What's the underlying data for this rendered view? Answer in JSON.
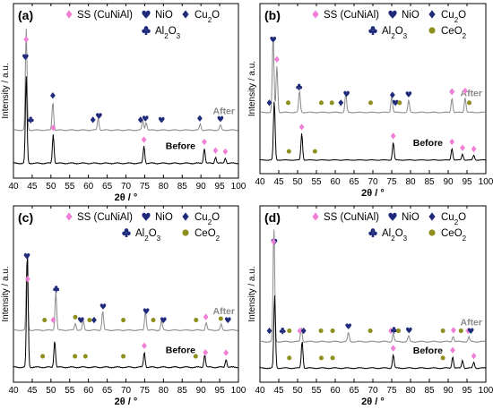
{
  "colors": {
    "ss": "#f27fd6",
    "nio": "#1f2a7a",
    "cu2o": "#1f2a7a",
    "al2o3": "#1f2a7a",
    "ceo2": "#8f8f1e",
    "after": "#8a8a8a",
    "before": "#000000"
  },
  "legend_text": {
    "ss": "SS (CuNiAl)",
    "nio": "NiO",
    "cu2o_main": "Cu",
    "cu2o_sub": "2",
    "cu2o_end": "O",
    "al2o3_a": "Al",
    "al2o3_sub1": "2",
    "al2o3_b": "O",
    "al2o3_sub2": "3",
    "ceo2_main": "CeO",
    "ceo2_sub": "2"
  },
  "chart_data": [
    {
      "type": "line",
      "panel": "(a)",
      "xlabel": "2θ / °",
      "ylabel": "Intensity / a.u.",
      "xlim": [
        40,
        100
      ],
      "xticks": [
        40,
        45,
        50,
        55,
        60,
        65,
        70,
        75,
        80,
        85,
        90,
        95,
        100
      ],
      "legend": [
        "SS (CuNiAl)",
        "NiO",
        "Cu2O",
        "Al2O3"
      ],
      "series": [
        {
          "name": "After",
          "peaks": [
            [
              43.4,
              1.0
            ],
            [
              50.5,
              0.28
            ],
            [
              62.6,
              0.12
            ],
            [
              74.5,
              0.1
            ],
            [
              75.4,
              0.08
            ],
            [
              89.8,
              0.06
            ],
            [
              95.2,
              0.05
            ]
          ]
        },
        {
          "name": "Before",
          "peaks": [
            [
              43.4,
              0.8
            ],
            [
              50.6,
              0.27
            ],
            [
              74.8,
              0.16
            ],
            [
              90.9,
              0.14
            ],
            [
              93.9,
              0.06
            ],
            [
              96.5,
              0.05
            ]
          ]
        }
      ],
      "markers": [
        {
          "phase": "ss",
          "x": 43.4,
          "curve": "After"
        },
        {
          "phase": "nio",
          "x": 43.2,
          "curve": "After"
        },
        {
          "phase": "al2o3",
          "x": 44.6,
          "curve": "After"
        },
        {
          "phase": "cu2o",
          "x": 50.5,
          "curve": "After"
        },
        {
          "phase": "cu2o",
          "x": 61.2,
          "curve": "After"
        },
        {
          "phase": "nio",
          "x": 62.8,
          "curve": "After"
        },
        {
          "phase": "cu2o",
          "x": 73.9,
          "curve": "After"
        },
        {
          "phase": "nio",
          "x": 75.2,
          "curve": "After"
        },
        {
          "phase": "nio",
          "x": 79.5,
          "curve": "After"
        },
        {
          "phase": "cu2o",
          "x": 89.7,
          "curve": "After"
        },
        {
          "phase": "nio",
          "x": 95.2,
          "curve": "After"
        },
        {
          "phase": "ss",
          "x": 50.6,
          "curve": "Before"
        },
        {
          "phase": "ss",
          "x": 74.8,
          "curve": "Before"
        },
        {
          "phase": "ss",
          "x": 90.9,
          "curve": "Before"
        },
        {
          "phase": "ss",
          "x": 93.9,
          "curve": "Before"
        },
        {
          "phase": "ss",
          "x": 96.5,
          "curve": "Before"
        }
      ]
    },
    {
      "type": "line",
      "panel": "(b)",
      "xlabel": "2θ / °",
      "ylabel": "Intensity / a.u.",
      "xlim": [
        40,
        100
      ],
      "xticks": [
        40,
        45,
        50,
        55,
        60,
        65,
        70,
        75,
        80,
        85,
        90,
        95,
        100
      ],
      "legend": [
        "SS (CuNiAl)",
        "NiO",
        "Cu2O",
        "Al2O3",
        "CeO2"
      ],
      "series": [
        {
          "name": "After",
          "peaks": [
            [
              43.5,
              0.9
            ],
            [
              44.5,
              0.55
            ],
            [
              50.5,
              0.25
            ],
            [
              62.8,
              0.22
            ],
            [
              75.0,
              0.2
            ],
            [
              79.5,
              0.14
            ],
            [
              91.0,
              0.17
            ],
            [
              94.5,
              0.18
            ]
          ]
        },
        {
          "name": "Before",
          "peaks": [
            [
              43.8,
              1.0
            ],
            [
              51.1,
              0.45
            ],
            [
              75.4,
              0.3
            ],
            [
              91.0,
              0.2
            ],
            [
              93.8,
              0.1
            ],
            [
              96.8,
              0.08
            ]
          ]
        }
      ],
      "markers": [
        {
          "phase": "cu2o",
          "x": 42.5,
          "curve": "After"
        },
        {
          "phase": "nio",
          "x": 43.5,
          "curve": "After"
        },
        {
          "phase": "ss",
          "x": 44.5,
          "curve": "After"
        },
        {
          "phase": "ceo2",
          "x": 47.5,
          "curve": "After"
        },
        {
          "phase": "al2o3",
          "x": 50.4,
          "curve": "After"
        },
        {
          "phase": "ceo2",
          "x": 56.3,
          "curve": "After"
        },
        {
          "phase": "ceo2",
          "x": 59.1,
          "curve": "After"
        },
        {
          "phase": "cu2o",
          "x": 61.5,
          "curve": "After"
        },
        {
          "phase": "nio",
          "x": 63.0,
          "curve": "After"
        },
        {
          "phase": "ceo2",
          "x": 69.4,
          "curve": "After"
        },
        {
          "phase": "cu2o",
          "x": 75.2,
          "curve": "After"
        },
        {
          "phase": "nio",
          "x": 76.0,
          "curve": "After"
        },
        {
          "phase": "ceo2",
          "x": 77.1,
          "curve": "After"
        },
        {
          "phase": "nio",
          "x": 79.5,
          "curve": "After"
        },
        {
          "phase": "cu2o",
          "x": 91.0,
          "curve": "After"
        },
        {
          "phase": "ss",
          "x": 91.0,
          "curve": "After"
        },
        {
          "phase": "ss",
          "x": 94.5,
          "curve": "After"
        },
        {
          "phase": "ceo2",
          "x": 95.6,
          "curve": "After"
        },
        {
          "phase": "ceo2",
          "x": 47.7,
          "curve": "Before"
        },
        {
          "phase": "ss",
          "x": 51.1,
          "curve": "Before"
        },
        {
          "phase": "ceo2",
          "x": 54.6,
          "curve": "Before"
        },
        {
          "phase": "ss",
          "x": 75.4,
          "curve": "Before"
        },
        {
          "phase": "ss",
          "x": 91.0,
          "curve": "Before"
        },
        {
          "phase": "ss",
          "x": 93.8,
          "curve": "Before"
        },
        {
          "phase": "ss",
          "x": 96.8,
          "curve": "Before"
        }
      ]
    },
    {
      "type": "line",
      "panel": "(c)",
      "xlabel": "2θ / °",
      "ylabel": "Intensity / a.u.",
      "xlim": [
        40,
        100
      ],
      "xticks": [
        40,
        45,
        50,
        55,
        60,
        65,
        70,
        75,
        80,
        85,
        90,
        95,
        100
      ],
      "legend": [
        "SS (CuNiAl)",
        "NiO",
        "Cu2O",
        "Al2O3",
        "CeO2"
      ],
      "series": [
        {
          "name": "After",
          "peaks": [
            [
              43.6,
              0.7
            ],
            [
              51.3,
              0.4
            ],
            [
              56.5,
              0.07
            ],
            [
              58.6,
              0.1
            ],
            [
              63.8,
              0.2
            ],
            [
              75.2,
              0.2
            ],
            [
              79.5,
              0.1
            ],
            [
              91.4,
              0.08
            ],
            [
              95.4,
              0.06
            ]
          ]
        },
        {
          "name": "Before",
          "peaks": [
            [
              43.7,
              1.0
            ],
            [
              51.0,
              0.23
            ],
            [
              74.9,
              0.13
            ],
            [
              91.0,
              0.11
            ],
            [
              96.7,
              0.07
            ]
          ]
        }
      ],
      "markers": [
        {
          "phase": "nio",
          "x": 43.6,
          "curve": "After"
        },
        {
          "phase": "ss",
          "x": 43.8,
          "curve": "After"
        },
        {
          "phase": "ceo2",
          "x": 48.3,
          "curve": "After"
        },
        {
          "phase": "ss",
          "x": 50.6,
          "curve": "After"
        },
        {
          "phase": "al2o3",
          "x": 51.4,
          "curve": "After"
        },
        {
          "phase": "ceo2",
          "x": 56.5,
          "curve": "After"
        },
        {
          "phase": "nio",
          "x": 58.0,
          "curve": "After"
        },
        {
          "phase": "ceo2",
          "x": 60.3,
          "curve": "After"
        },
        {
          "phase": "cu2o",
          "x": 61.5,
          "curve": "After"
        },
        {
          "phase": "nio",
          "x": 63.9,
          "curve": "After"
        },
        {
          "phase": "ceo2",
          "x": 69.3,
          "curve": "After"
        },
        {
          "phase": "nio",
          "x": 75.4,
          "curve": "After"
        },
        {
          "phase": "ceo2",
          "x": 77.3,
          "curve": "After"
        },
        {
          "phase": "nio",
          "x": 80.0,
          "curve": "After"
        },
        {
          "phase": "ceo2",
          "x": 88.7,
          "curve": "After"
        },
        {
          "phase": "ss",
          "x": 91.3,
          "curve": "After"
        },
        {
          "phase": "ceo2",
          "x": 95.3,
          "curve": "After"
        },
        {
          "phase": "nio",
          "x": 97.2,
          "curve": "After"
        },
        {
          "phase": "ceo2",
          "x": 47.8,
          "curve": "Before"
        },
        {
          "phase": "ceo2",
          "x": 56.4,
          "curve": "Before"
        },
        {
          "phase": "ceo2",
          "x": 59.2,
          "curve": "Before"
        },
        {
          "phase": "ceo2",
          "x": 69.3,
          "curve": "Before"
        },
        {
          "phase": "ss",
          "x": 74.9,
          "curve": "Before"
        },
        {
          "phase": "ceo2",
          "x": 88.6,
          "curve": "Before"
        },
        {
          "phase": "ss",
          "x": 91.2,
          "curve": "Before"
        },
        {
          "phase": "ss",
          "x": 96.7,
          "curve": "Before"
        }
      ]
    },
    {
      "type": "line",
      "panel": "(d)",
      "xlabel": "2θ / °",
      "ylabel": "Intensity / a.u.",
      "xlim": [
        40,
        100
      ],
      "xticks": [
        40,
        45,
        50,
        55,
        60,
        65,
        70,
        75,
        80,
        85,
        90,
        95,
        100
      ],
      "legend": [
        "SS (CuNiAl)",
        "NiO",
        "Cu2O",
        "Al2O3",
        "CeO2"
      ],
      "series": [
        {
          "name": "After",
          "peaks": [
            [
              43.7,
              1.0
            ],
            [
              51.0,
              0.12
            ],
            [
              63.5,
              0.08
            ],
            [
              75.4,
              0.07
            ],
            [
              79.5,
              0.05
            ],
            [
              91.3,
              0.05
            ],
            [
              95.5,
              0.04
            ]
          ]
        },
        {
          "name": "Before",
          "peaks": [
            [
              43.9,
              0.75
            ],
            [
              51.2,
              0.28
            ],
            [
              75.4,
              0.14
            ],
            [
              91.2,
              0.12
            ],
            [
              93.8,
              0.08
            ],
            [
              96.8,
              0.06
            ]
          ]
        }
      ],
      "markers": [
        {
          "phase": "nio",
          "x": 43.8,
          "curve": "After"
        },
        {
          "phase": "ss",
          "x": 43.6,
          "curve": "After"
        },
        {
          "phase": "cu2o",
          "x": 42.5,
          "curve": "After"
        },
        {
          "phase": "al2o3",
          "x": 46.0,
          "curve": "After"
        },
        {
          "phase": "ceo2",
          "x": 47.8,
          "curve": "After"
        },
        {
          "phase": "ss",
          "x": 50.6,
          "curve": "After"
        },
        {
          "phase": "cu2o",
          "x": 51.6,
          "curve": "After"
        },
        {
          "phase": "ceo2",
          "x": 56.2,
          "curve": "After"
        },
        {
          "phase": "ceo2",
          "x": 59.3,
          "curve": "After"
        },
        {
          "phase": "nio",
          "x": 63.5,
          "curve": "After"
        },
        {
          "phase": "ceo2",
          "x": 69.3,
          "curve": "After"
        },
        {
          "phase": "ss",
          "x": 74.8,
          "curve": "After"
        },
        {
          "phase": "al2o3",
          "x": 75.6,
          "curve": "After"
        },
        {
          "phase": "ceo2",
          "x": 76.8,
          "curve": "After"
        },
        {
          "phase": "nio",
          "x": 79.6,
          "curve": "After"
        },
        {
          "phase": "ceo2",
          "x": 88.6,
          "curve": "After"
        },
        {
          "phase": "ss",
          "x": 91.4,
          "curve": "After"
        },
        {
          "phase": "ceo2",
          "x": 93.4,
          "curve": "After"
        },
        {
          "phase": "ss",
          "x": 95.3,
          "curve": "After"
        },
        {
          "phase": "nio",
          "x": 96.0,
          "curve": "After"
        },
        {
          "phase": "ceo2",
          "x": 47.8,
          "curve": "Before"
        },
        {
          "phase": "ceo2",
          "x": 56.3,
          "curve": "Before"
        },
        {
          "phase": "ceo2",
          "x": 59.3,
          "curve": "Before"
        },
        {
          "phase": "ss",
          "x": 75.4,
          "curve": "Before"
        },
        {
          "phase": "ceo2",
          "x": 88.6,
          "curve": "Before"
        },
        {
          "phase": "ss",
          "x": 91.2,
          "curve": "Before"
        },
        {
          "phase": "ss",
          "x": 96.8,
          "curve": "Before"
        }
      ]
    }
  ]
}
